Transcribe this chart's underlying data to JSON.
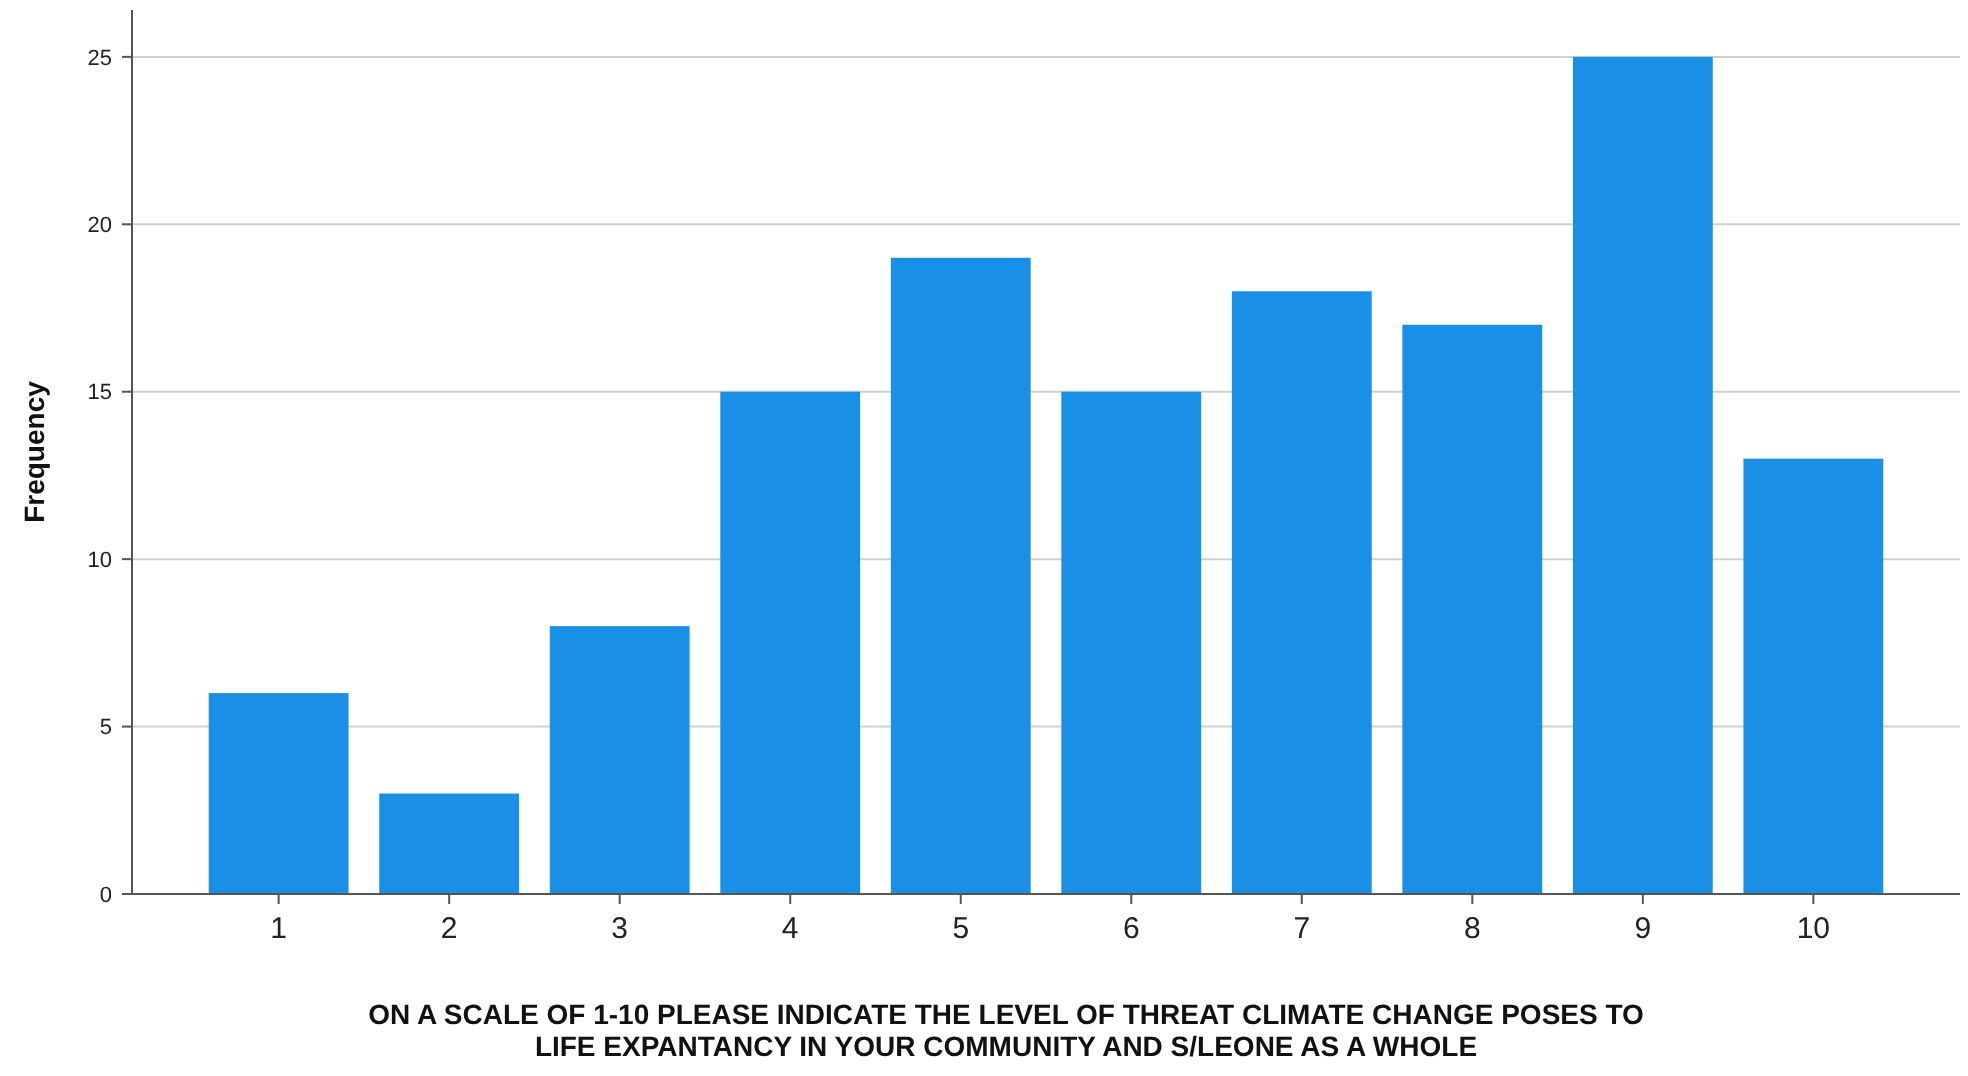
{
  "chart_data": {
    "type": "bar",
    "xlabel": "ON A SCALE OF 1-10 PLEASE INDICATE THE LEVEL OF THREAT CLIMATE CHANGE POSES TO LIFE EXPANTANCY IN YOUR COMMUNITY AND S/LEONE AS A WHOLE",
    "ylabel": "Frequency",
    "categories": [
      "1",
      "2",
      "3",
      "4",
      "5",
      "6",
      "7",
      "8",
      "9",
      "10"
    ],
    "values": [
      6,
      3,
      8,
      15,
      19,
      15,
      18,
      17,
      25,
      13
    ],
    "color": "#1a8fe6",
    "ylim": [
      0,
      26.4
    ],
    "yticks": [
      0,
      5,
      10,
      15,
      20,
      25
    ],
    "grid": "y"
  }
}
